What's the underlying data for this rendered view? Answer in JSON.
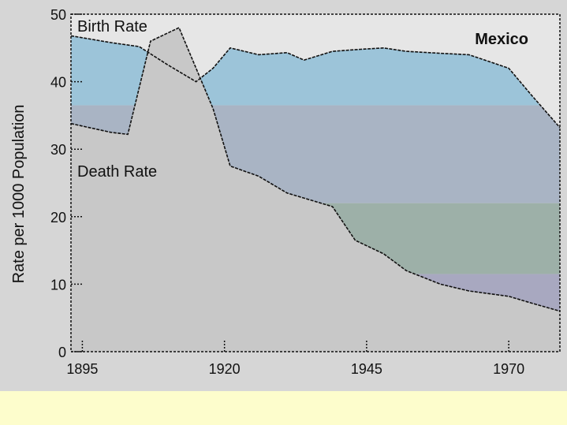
{
  "chart_data": {
    "type": "area",
    "title": "Mexico",
    "ylabel": "Rate per 1000 Population",
    "xlabel": "",
    "xlim": [
      1893,
      1979
    ],
    "ylim": [
      0,
      50
    ],
    "x_ticks": [
      1895,
      1920,
      1945,
      1970
    ],
    "y_ticks": [
      0,
      10,
      20,
      30,
      40,
      50
    ],
    "grid": false,
    "series": [
      {
        "name": "Birth Rate",
        "x": [
          1893,
          1900,
          1905,
          1910,
          1915,
          1918,
          1921,
          1926,
          1931,
          1934,
          1939,
          1944,
          1948,
          1952,
          1958,
          1963,
          1970,
          1974,
          1979
        ],
        "y": [
          46.8,
          45.8,
          45.2,
          42.5,
          40.0,
          42.0,
          45.0,
          44.0,
          44.3,
          43.2,
          44.5,
          44.8,
          45.0,
          44.5,
          44.2,
          44.0,
          42.0,
          38.0,
          33.2
        ]
      },
      {
        "name": "Death Rate",
        "x": [
          1893,
          1900,
          1903,
          1907,
          1912,
          1918,
          1921,
          1926,
          1931,
          1939,
          1943,
          1948,
          1952,
          1958,
          1963,
          1970,
          1974,
          1979
        ],
        "y": [
          33.8,
          32.5,
          32.2,
          46.0,
          48.0,
          36.0,
          27.5,
          26.0,
          23.5,
          21.5,
          16.5,
          14.5,
          12.0,
          10.0,
          9.0,
          8.2,
          7.2,
          6.0
        ]
      }
    ],
    "band_colors": [
      "#9cc4d9",
      "#a9b4c4",
      "#9db0a8",
      "#a8a8c0"
    ],
    "colors": {
      "plot_background": "#e6e6e6",
      "fill_below": "#c8c8c8",
      "line": "#111111"
    }
  },
  "caption": ""
}
